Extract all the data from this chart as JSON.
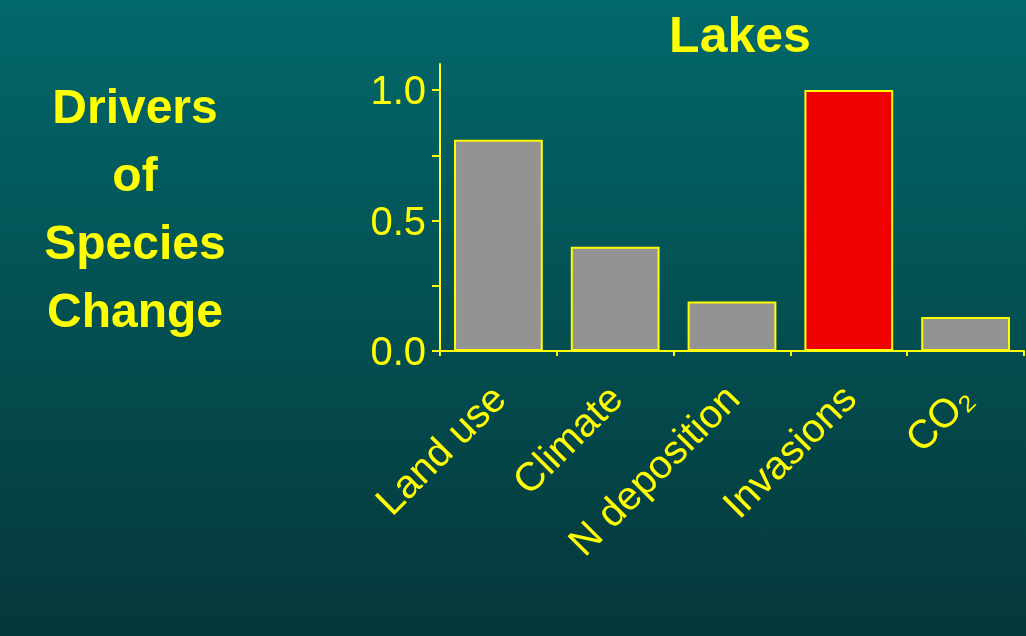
{
  "chart_data": {
    "type": "bar",
    "title": "Lakes",
    "categories": [
      "Land use",
      "Climate",
      "N deposition",
      "Invasions",
      "CO₂"
    ],
    "values": [
      0.81,
      0.4,
      0.19,
      1.0,
      0.13
    ],
    "colors": [
      "#939393",
      "#939393",
      "#939393",
      "#ee0000",
      "#939393"
    ],
    "ylim": [
      0,
      1.1
    ],
    "yticks": [
      {
        "value": 0,
        "label": "0.0"
      },
      {
        "value": 0.25,
        "label": null
      },
      {
        "value": 0.5,
        "label": "0.5"
      },
      {
        "value": 0.75,
        "label": null
      },
      {
        "value": 1,
        "label": "1.0"
      }
    ],
    "grid": false,
    "annotations": [
      "Drivers\nof\nSpecies\nChange"
    ]
  }
}
